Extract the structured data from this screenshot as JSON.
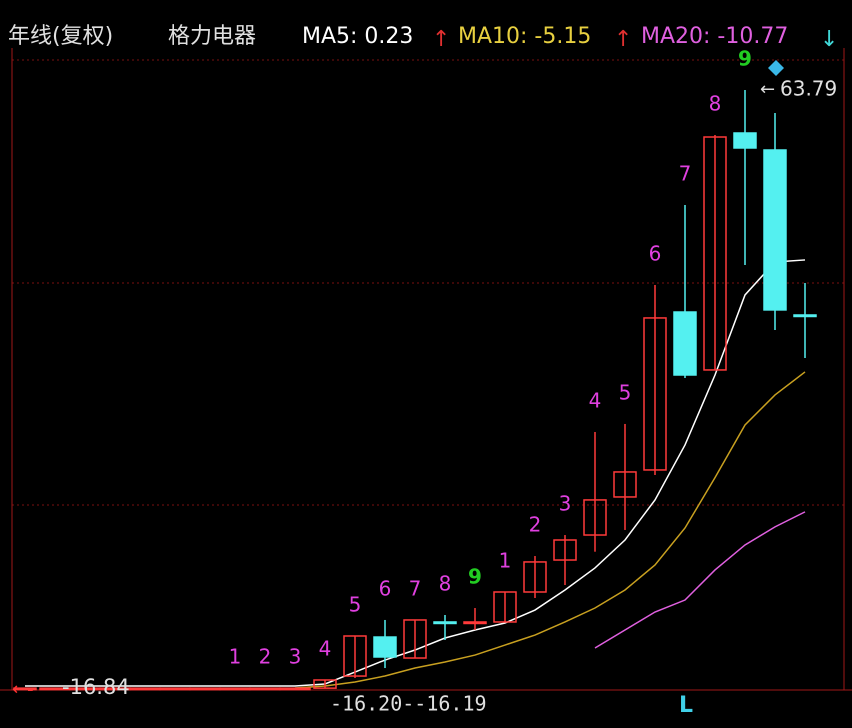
{
  "chart_data": {
    "type": "candlestick",
    "header": {
      "title": "年线(复权)",
      "stock": "格力电器",
      "indicators": [
        {
          "label": "MA5: 0.23",
          "arrow": "↑",
          "color": "#ffffff",
          "arrow_color": "#e03030"
        },
        {
          "label": "MA10: -5.15",
          "arrow": "↑",
          "color": "#e8d040",
          "arrow_color": "#e03030"
        },
        {
          "label": "MA20: -10.77",
          "arrow": "↓",
          "color": "#e060e0",
          "arrow_color": "#40d8d8"
        }
      ]
    },
    "categories": [
      null,
      null,
      null,
      null,
      null,
      null,
      null,
      null,
      null,
      null,
      null,
      null,
      null,
      null,
      null,
      null,
      null,
      null,
      null,
      null,
      null,
      null,
      null,
      null,
      null,
      null,
      null
    ],
    "open": [
      -16.84,
      -16.84,
      -16.84,
      -16.84,
      -16.84,
      -16.84,
      -16.84,
      -16.84,
      -16.84,
      -16.84,
      -16.84,
      -15.21,
      -9.95,
      -12.78,
      -7.92,
      -7.92,
      -7.92,
      -3.88,
      0.43,
      3.8,
      8.93,
      12.57,
      33.86,
      26.05,
      57.99,
      55.7,
      33.46
    ],
    "high": [
      -16.84,
      -16.84,
      -16.84,
      -16.84,
      -16.84,
      -16.84,
      -16.84,
      -16.84,
      -16.84,
      -16.84,
      -15.74,
      -9.81,
      -7.65,
      -7.65,
      -6.98,
      -6.04,
      -3.88,
      0.97,
      3.8,
      17.69,
      18.77,
      37.5,
      48.29,
      57.72,
      63.79,
      60.69,
      37.77
    ],
    "low": [
      -16.84,
      -16.84,
      -16.84,
      -16.84,
      -16.84,
      -16.84,
      -16.84,
      -16.84,
      -16.84,
      -16.84,
      -16.84,
      -15.47,
      -14.13,
      -12.78,
      -10.35,
      -9.0,
      -7.92,
      -4.69,
      -2.94,
      1.55,
      4.48,
      11.89,
      24.97,
      26.05,
      40.2,
      31.44,
      27.66
    ],
    "close": [
      -16.84,
      -16.84,
      -16.84,
      -16.84,
      -16.84,
      -16.84,
      -16.84,
      -16.84,
      -16.84,
      -16.84,
      -15.74,
      -9.81,
      -12.64,
      -7.65,
      -7.92,
      -7.92,
      -3.88,
      0.17,
      3.13,
      8.53,
      12.3,
      33.06,
      25.37,
      57.45,
      55.97,
      34.14,
      33.46
    ],
    "up_color": "#ff3a3a",
    "down_color": "#54f0f0",
    "series": [
      {
        "color": "#ffffff",
        "values": [
          -16.55,
          -16.55,
          -16.55,
          -16.55,
          -16.55,
          -16.55,
          -16.55,
          -16.55,
          -16.55,
          -16.55,
          -16.28,
          -14.67,
          -13.05,
          -11.7,
          -10.08,
          -9.0,
          -8.06,
          -6.31,
          -3.61,
          -0.64,
          3.13,
          8.53,
          15.94,
          25.37,
          36.16,
          40.61,
          40.88
        ]
      },
      {
        "color": "#c8a020",
        "values": [
          null,
          null,
          null,
          null,
          null,
          null,
          null,
          null,
          null,
          -16.82,
          -16.55,
          -16.01,
          -15.2,
          -14.13,
          -13.32,
          -12.38,
          -11.03,
          -9.68,
          -7.92,
          -6.04,
          -3.61,
          -0.24,
          4.75,
          11.53,
          18.63,
          22.68,
          25.78
        ]
      },
      {
        "color": "#e060e0",
        "values": [
          null,
          null,
          null,
          null,
          null,
          null,
          null,
          null,
          null,
          null,
          null,
          null,
          null,
          null,
          null,
          null,
          null,
          null,
          null,
          -11.43,
          -9.0,
          -6.58,
          -4.96,
          -0.91,
          2.46,
          4.9,
          6.92
        ]
      }
    ],
    "counts": [
      null,
      null,
      null,
      null,
      null,
      null,
      null,
      {
        "label": "1",
        "color": "#e040e0"
      },
      {
        "label": "2",
        "color": "#e040e0"
      },
      {
        "label": "3",
        "color": "#e040e0"
      },
      {
        "label": "4",
        "color": "#e040e0"
      },
      {
        "label": "5",
        "color": "#e040e0"
      },
      {
        "label": "6",
        "color": "#e040e0"
      },
      {
        "label": "7",
        "color": "#e040e0"
      },
      {
        "label": "8",
        "color": "#e040e0"
      },
      {
        "label": "9",
        "color": "#22cc22"
      },
      {
        "label": "1",
        "color": "#e040e0"
      },
      {
        "label": "2",
        "color": "#e040e0"
      },
      {
        "label": "3",
        "color": "#e040e0"
      },
      {
        "label": "4",
        "color": "#e040e0"
      },
      {
        "label": "5",
        "color": "#e040e0"
      },
      {
        "label": "6",
        "color": "#e040e0"
      },
      {
        "label": "7",
        "color": "#e040e0"
      },
      {
        "label": "8",
        "color": "#e040e0"
      },
      {
        "label": "9",
        "color": "#22cc22"
      },
      null,
      null
    ],
    "high_label": 63.79,
    "low_label": -16.84,
    "cursor_label": "-16.20--16.19",
    "marker": "L",
    "ylim": [
      -17.09,
      74.57
    ]
  }
}
